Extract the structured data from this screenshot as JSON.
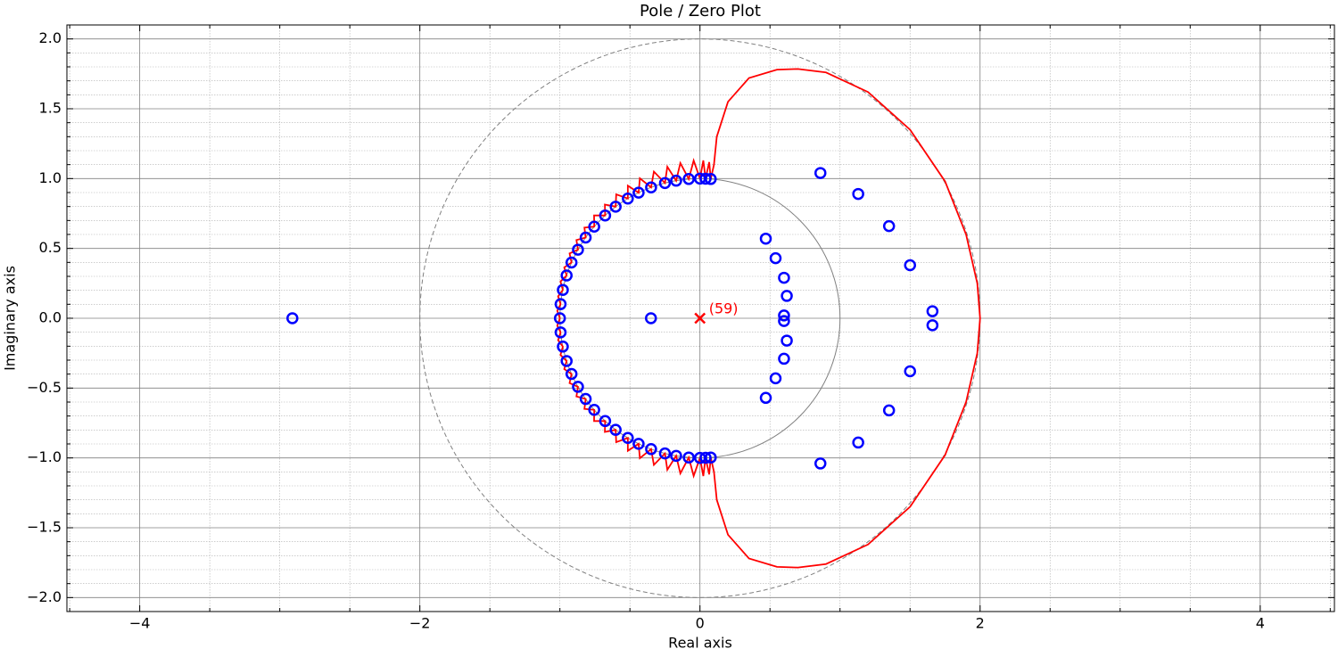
{
  "chart_data": {
    "type": "pole-zero",
    "title": "Pole / Zero Plot",
    "x_label": "Real axis",
    "y_label": "Imaginary axis",
    "xlim": [
      -4.52,
      4.53
    ],
    "ylim": [
      -2.1,
      2.1
    ],
    "xticks": [
      {
        "value": -4,
        "label": "−4"
      },
      {
        "value": -2,
        "label": "−2"
      },
      0,
      2,
      4
    ],
    "yticks": [
      {
        "value": -2,
        "label": "−2.0"
      },
      {
        "value": -1.5,
        "label": "−1.5"
      },
      {
        "value": -1,
        "label": "−1.0"
      },
      {
        "value": -0.5,
        "label": "−0.5"
      },
      {
        "value": 0,
        "label": "0.0"
      },
      {
        "value": 0.5,
        "label": "0.5"
      },
      {
        "value": 1,
        "label": "1.0"
      },
      {
        "value": 1.5,
        "label": "1.5"
      },
      {
        "value": 2,
        "label": "2.0"
      }
    ],
    "xminorticks": [
      -4.5,
      -3.5,
      -3,
      -2.5,
      -1.5,
      -1,
      -0.5,
      0.5,
      1,
      1.5,
      2.5,
      3,
      3.5,
      4.5
    ],
    "yminorticks": [
      -2.1,
      -1.9,
      -1.8,
      -1.7,
      -1.6,
      -1.4,
      -1.3,
      -1.2,
      -1.1,
      -0.9,
      -0.8,
      -0.7,
      -0.6,
      -0.4,
      -0.3,
      -0.2,
      -0.1,
      0.1,
      0.2,
      0.3,
      0.4,
      0.6,
      0.7,
      0.8,
      0.9,
      1.1,
      1.2,
      1.3,
      1.4,
      1.6,
      1.7,
      1.8,
      1.9,
      2.1
    ],
    "grid": true,
    "reference_circles": [
      {
        "radius": 1,
        "color": "#808080",
        "style": "solid"
      },
      {
        "radius": 2,
        "color": "#808080",
        "style": "dashed"
      }
    ],
    "zeros": {
      "color": "#0000ff",
      "x": [
        0.077,
        0.04,
        0,
        -0.08,
        -0.17,
        -0.25,
        -0.349,
        -0.438,
        -0.515,
        -0.602,
        -0.677,
        -0.755,
        -0.816,
        -0.871,
        -0.917,
        -0.952,
        -0.979,
        -0.995,
        -1,
        -0.995,
        -0.979,
        -0.952,
        -0.917,
        -0.871,
        -0.816,
        -0.755,
        -0.677,
        -0.602,
        -0.515,
        -0.438,
        -0.349,
        -0.25,
        -0.17,
        -0.08,
        0,
        0.04,
        0.077,
        0.47,
        0.54,
        0.6,
        0.62,
        0.6,
        0.6,
        0.62,
        0.6,
        0.54,
        0.47,
        0.86,
        1.13,
        1.35,
        1.5,
        1.66,
        1.66,
        1.5,
        1.35,
        1.13,
        0.86,
        -2.91,
        -0.35
      ],
      "y": [
        0.997,
        0.999,
        1,
        0.997,
        0.985,
        0.968,
        0.937,
        0.899,
        0.857,
        0.799,
        0.736,
        0.656,
        0.578,
        0.491,
        0.399,
        0.306,
        0.203,
        0.101,
        0,
        -0.101,
        -0.203,
        -0.306,
        -0.399,
        -0.491,
        -0.578,
        -0.656,
        -0.736,
        -0.799,
        -0.857,
        -0.899,
        -0.937,
        -0.968,
        -0.985,
        -0.997,
        -1,
        -0.999,
        -0.997,
        0.57,
        0.43,
        0.29,
        0.16,
        0.02,
        -0.02,
        -0.16,
        -0.29,
        -0.43,
        -0.57,
        1.04,
        0.89,
        0.66,
        0.38,
        0.05,
        -0.05,
        -0.38,
        -0.66,
        -0.89,
        -1.04,
        0,
        0
      ]
    },
    "poles": {
      "color": "#ff0000",
      "x": [
        0
      ],
      "y": [
        0
      ],
      "label": "(59)"
    },
    "locus": {
      "color": "#ff0000",
      "x": [
        -1,
        -1.019,
        -0.995,
        -1.013,
        -0.979,
        -0.996,
        -0.952,
        -0.969,
        -0.917,
        -0.931,
        -0.871,
        -0.882,
        -0.816,
        -0.825,
        -0.755,
        -0.756,
        -0.677,
        -0.679,
        -0.602,
        -0.598,
        -0.515,
        -0.515,
        -0.438,
        -0.429,
        -0.349,
        -0.329,
        -0.25,
        -0.233,
        -0.17,
        -0.14,
        -0.08,
        -0.045,
        0,
        0.024,
        0.04,
        0.066,
        0.077,
        0.1,
        0.12,
        0.2,
        0.35,
        0.55,
        0.7,
        0.9,
        1.2,
        1.5,
        1.75,
        1.9,
        1.98,
        2,
        1.98,
        1.9,
        1.75,
        1.5,
        1.2,
        0.9,
        0.7,
        0.55,
        0.35,
        0.2,
        0.12,
        0.1,
        0.077,
        0.066,
        0.04,
        0.024,
        0,
        -0.045,
        -0.08,
        -0.14,
        -0.17,
        -0.233,
        -0.25,
        -0.329,
        -0.349,
        -0.429,
        -0.438,
        -0.515,
        -0.515,
        -0.598,
        -0.602,
        -0.679,
        -0.677,
        -0.756,
        -0.755,
        -0.825,
        -0.816,
        -0.882,
        -0.871,
        -0.931,
        -0.917,
        -0.969,
        -0.952,
        -0.996,
        -0.979,
        -1.013,
        -0.995,
        -1.019,
        -1
      ],
      "y": [
        0,
        0.053,
        0.101,
        0.157,
        0.203,
        0.263,
        0.306,
        0.364,
        0.399,
        0.464,
        0.491,
        0.56,
        0.578,
        0.649,
        0.656,
        0.736,
        0.736,
        0.814,
        0.799,
        0.887,
        0.857,
        0.949,
        0.899,
        1.002,
        0.937,
        1.05,
        0.968,
        1.085,
        0.985,
        1.111,
        0.997,
        1.129,
        1,
        1.13,
        0.999,
        1.118,
        0.997,
        1.1,
        1.3,
        1.55,
        1.72,
        1.78,
        1.785,
        1.76,
        1.62,
        1.35,
        0.98,
        0.6,
        0.25,
        0,
        -0.25,
        -0.6,
        -0.98,
        -1.35,
        -1.62,
        -1.76,
        -1.785,
        -1.78,
        -1.72,
        -1.55,
        -1.3,
        -1.1,
        -0.997,
        -1.118,
        -0.999,
        -1.13,
        -1,
        -1.129,
        -0.997,
        -1.111,
        -0.985,
        -1.085,
        -0.968,
        -1.05,
        -0.937,
        -1.002,
        -0.899,
        -0.949,
        -0.857,
        -0.887,
        -0.799,
        -0.814,
        -0.736,
        -0.736,
        -0.656,
        -0.649,
        -0.578,
        -0.56,
        -0.491,
        -0.464,
        -0.399,
        -0.364,
        -0.306,
        -0.263,
        -0.203,
        -0.157,
        -0.101,
        -0.053,
        0
      ]
    }
  }
}
